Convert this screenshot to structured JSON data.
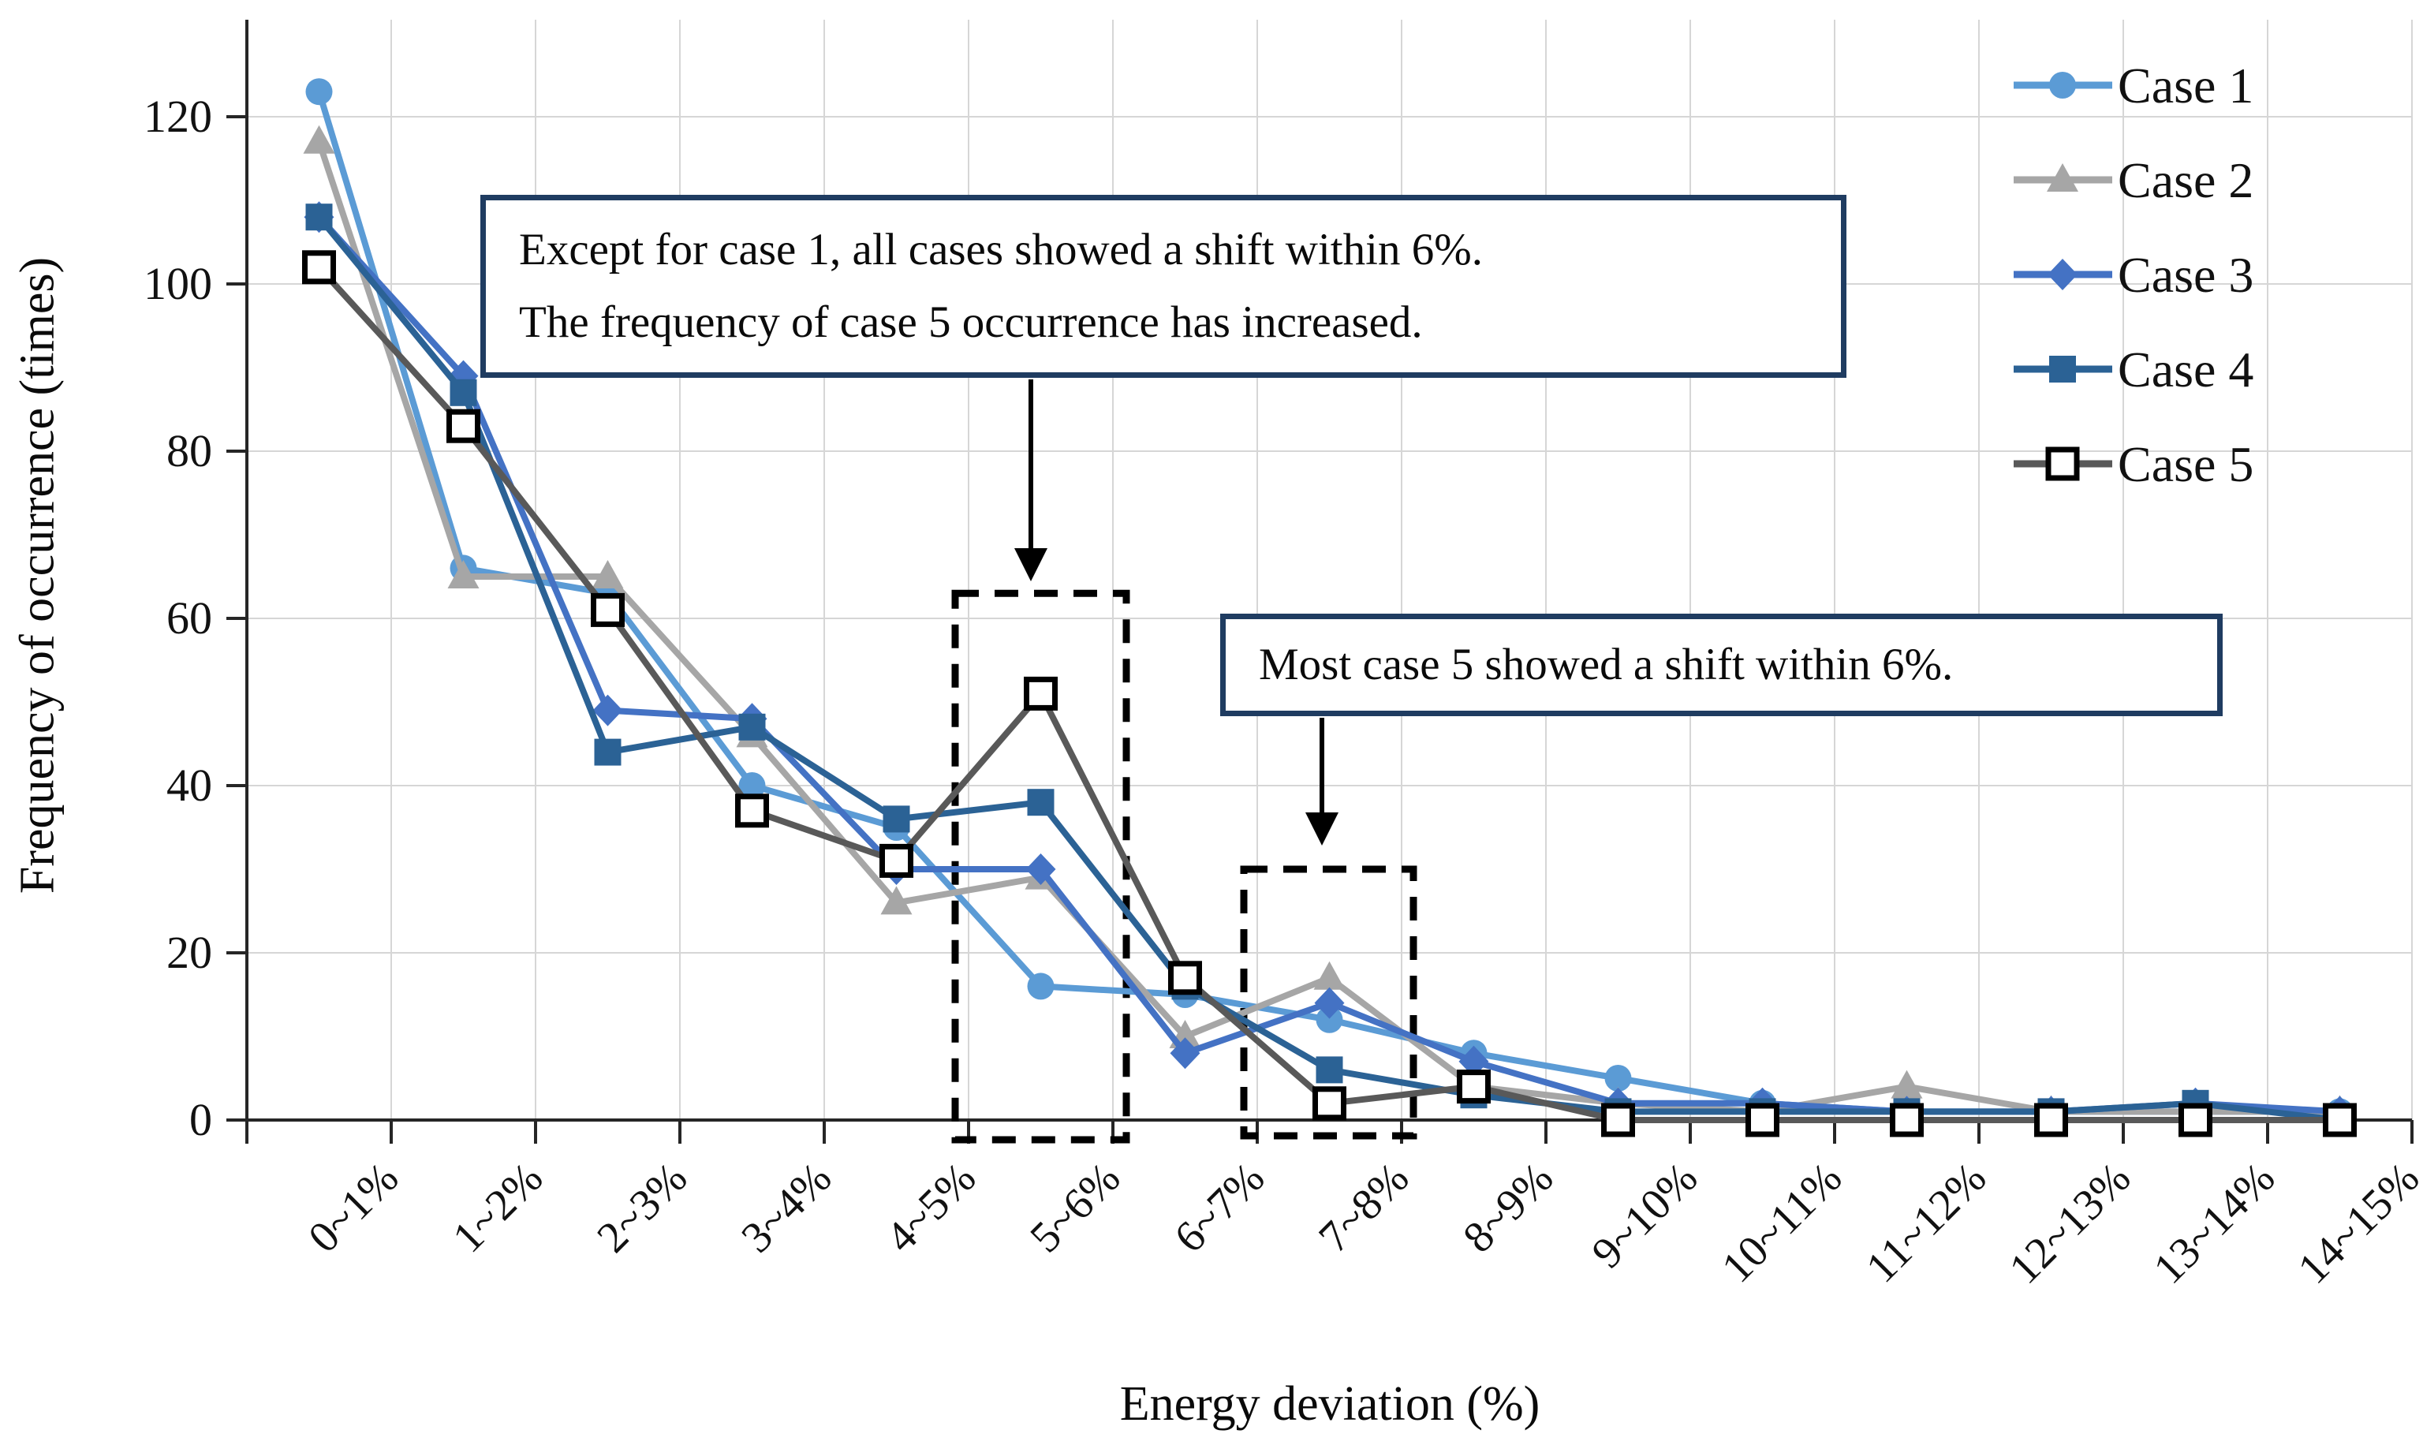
{
  "chart_data": {
    "type": "line",
    "title": "",
    "xlabel": "Energy deviation (%)",
    "ylabel": "Frequency of occurrence (times)",
    "ylim": [
      0,
      120
    ],
    "ytick_step": 20,
    "yticks": [
      0,
      20,
      40,
      60,
      80,
      100,
      120
    ],
    "grid": true,
    "legend_position": "top-right",
    "categories": [
      "0~1%",
      "1~2%",
      "2~3%",
      "3~4%",
      "4~5%",
      "5~6%",
      "6~7%",
      "7~8%",
      "8~9%",
      "9~10%",
      "10~11%",
      "11~12%",
      "12~13%",
      "13~14%",
      "14~15%"
    ],
    "series": [
      {
        "name": "Case 1",
        "marker": "circle",
        "color": "#5B9BD5",
        "values": [
          123,
          66,
          63,
          40,
          35,
          16,
          15,
          12,
          8,
          5,
          2,
          1,
          1,
          1,
          1
        ]
      },
      {
        "name": "Case 2",
        "marker": "triangle",
        "color": "#A6A6A6",
        "values": [
          117,
          65,
          65,
          46,
          26,
          29,
          10,
          17,
          4,
          2,
          1,
          4,
          1,
          1,
          1
        ]
      },
      {
        "name": "Case 3",
        "marker": "diamond",
        "color": "#4472C4",
        "values": [
          108,
          89,
          49,
          48,
          30,
          30,
          8,
          14,
          7,
          2,
          2,
          1,
          1,
          2,
          1
        ]
      },
      {
        "name": "Case 4",
        "marker": "square",
        "color": "#2B6295",
        "values": [
          108,
          87,
          44,
          47,
          36,
          38,
          16,
          6,
          3,
          1,
          1,
          1,
          1,
          2,
          0
        ]
      },
      {
        "name": "Case 5",
        "marker": "square-open",
        "color": "#595959",
        "marker_fill": "#FFFFFF",
        "marker_border": "#000000",
        "values": [
          102,
          83,
          61,
          37,
          31,
          51,
          17,
          2,
          4,
          0,
          0,
          0,
          0,
          0,
          0
        ]
      }
    ],
    "annotations": [
      {
        "text": "Except for case 1, all cases showed a shift within 6%.\nThe frequency of case 5 occurrence has increased.",
        "target_category": "5~6%"
      },
      {
        "text": "Most case 5 showed a shift within 6%.",
        "target_category": "7~8%"
      }
    ],
    "highlight_boxes": [
      {
        "category": "5~6%",
        "value_range": [
          0,
          63
        ]
      },
      {
        "category": "7~8%",
        "value_range": [
          0,
          30
        ]
      }
    ],
    "colors": {
      "grid": "#D6D6D6",
      "axis": "#262626",
      "annotation_border": "#1F3C61",
      "highlight_dash": "#000000"
    }
  }
}
